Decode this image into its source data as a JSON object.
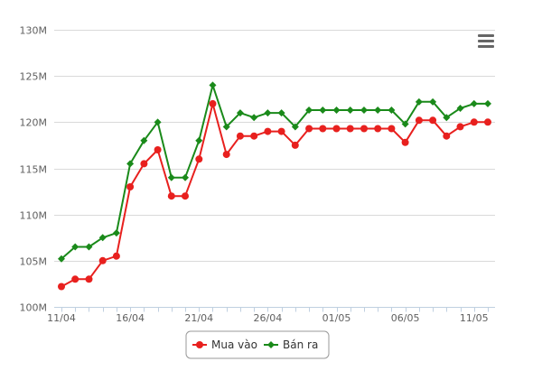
{
  "chart_data": {
    "type": "line",
    "ylim": [
      100,
      130
    ],
    "y_ticks": [
      {
        "value": 100,
        "label": "100M"
      },
      {
        "value": 105,
        "label": "105M"
      },
      {
        "value": 110,
        "label": "110M"
      },
      {
        "value": 115,
        "label": "115M"
      },
      {
        "value": 120,
        "label": "120M"
      },
      {
        "value": 125,
        "label": "125M"
      },
      {
        "value": 130,
        "label": "130M"
      }
    ],
    "x": [
      "11/04",
      "12/04",
      "13/04",
      "14/04",
      "15/04",
      "16/04",
      "17/04",
      "18/04",
      "19/04",
      "20/04",
      "21/04",
      "22/04",
      "23/04",
      "24/04",
      "25/04",
      "26/04",
      "27/04",
      "28/04",
      "29/04",
      "30/04",
      "01/05",
      "02/05",
      "03/05",
      "04/05",
      "05/05",
      "06/05",
      "07/05",
      "08/05",
      "09/05",
      "10/05",
      "11/05",
      "12/05"
    ],
    "x_ticks": [
      {
        "index": 0,
        "label": "11/04"
      },
      {
        "index": 5,
        "label": "16/04"
      },
      {
        "index": 10,
        "label": "21/04"
      },
      {
        "index": 15,
        "label": "26/04"
      },
      {
        "index": 20,
        "label": "01/05"
      },
      {
        "index": 25,
        "label": "06/05"
      },
      {
        "index": 30,
        "label": "11/05"
      }
    ],
    "grid": true,
    "legend_position": "bottom-center",
    "series": [
      {
        "name": "Mua vào",
        "color": "#e8201e",
        "marker": "circle",
        "values": [
          102.2,
          103.0,
          103.0,
          105.0,
          105.5,
          113.0,
          115.5,
          117.0,
          112.0,
          112.0,
          116.0,
          122.0,
          116.5,
          118.5,
          118.5,
          119.0,
          119.0,
          117.5,
          119.3,
          119.3,
          119.3,
          119.3,
          119.3,
          119.3,
          119.3,
          117.8,
          120.2,
          120.2,
          118.5,
          119.5,
          120.0,
          120.0
        ]
      },
      {
        "name": "Bán ra",
        "color": "#1a8a1a",
        "marker": "diamond",
        "values": [
          105.2,
          106.5,
          106.5,
          107.5,
          108.0,
          115.5,
          118.0,
          120.0,
          114.0,
          114.0,
          118.0,
          124.0,
          119.5,
          121.0,
          120.5,
          121.0,
          121.0,
          119.5,
          121.3,
          121.3,
          121.3,
          121.3,
          121.3,
          121.3,
          121.3,
          119.8,
          122.2,
          122.2,
          120.5,
          121.5,
          122.0,
          122.0
        ]
      }
    ]
  },
  "toolbar": {
    "menu_icon": "hamburger-menu-icon"
  }
}
